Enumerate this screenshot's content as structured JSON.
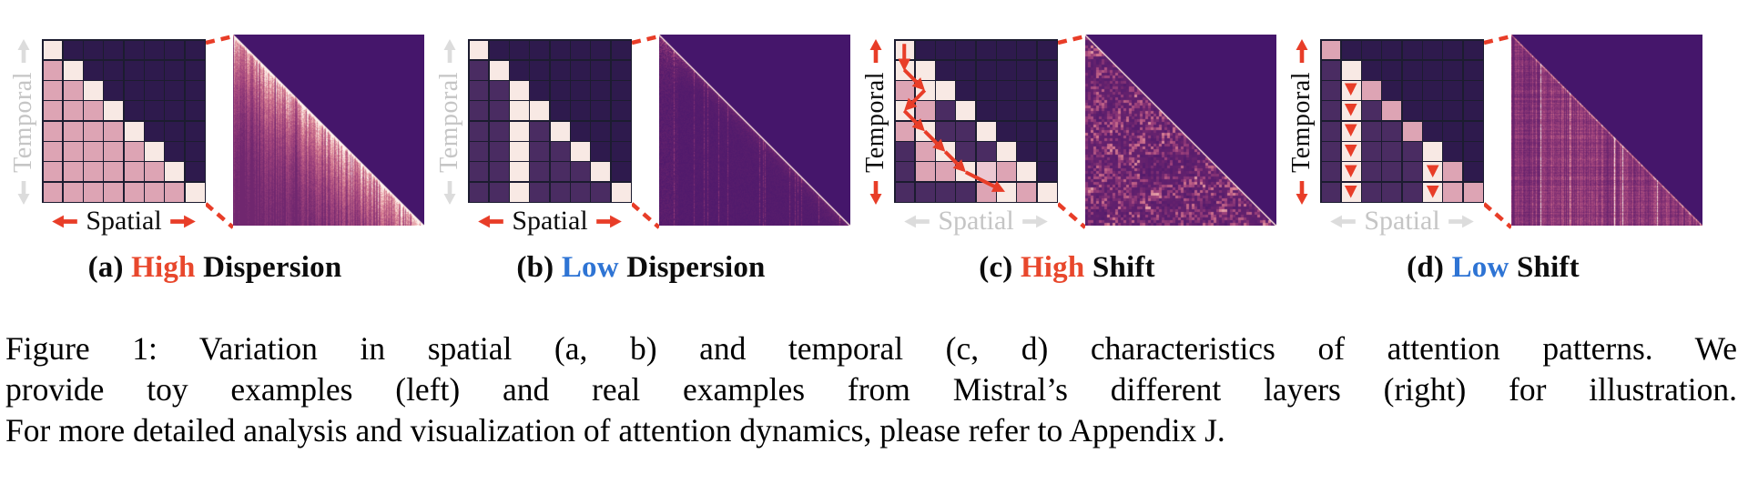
{
  "palette": {
    "accent_red": "#e83d28",
    "accent_blue": "#2e74d4",
    "gray_label": "#c5c5c5",
    "gray_arrow": "#dcdcdc",
    "grid_line": "#1c1c30",
    "heat_background": "#45166b",
    "cell_colors": {
      "d": "#2e1a4d",
      "m": "#4a2c62",
      "p": "#dda4b4",
      "P": "#ecc8d2",
      "c": "#f8e9e4"
    }
  },
  "panels": [
    {
      "id": "a",
      "temporal": {
        "label": "Temporal",
        "style": "gray"
      },
      "spatial": {
        "label": "Spatial",
        "style": "red"
      },
      "grid": [
        "c d d d d d d d",
        "p c d d d d d d",
        "p p c d d d d d",
        "p p p c d d d d",
        "p p p p c d d d",
        "p p p p p c d d",
        "p p p p p p c d",
        "p p p p p p p c"
      ],
      "overlay": {
        "type": "none"
      },
      "heatmap": {
        "style": "high-dispersion",
        "seed": 7
      },
      "caption": {
        "prefix": "(a)",
        "word": "High",
        "word_color": "#e8472c",
        "rest": "Dispersion"
      }
    },
    {
      "id": "b",
      "temporal": {
        "label": "Temporal",
        "style": "gray"
      },
      "spatial": {
        "label": "Spatial",
        "style": "red"
      },
      "grid": [
        "c d d d d d d d",
        "m c d d d d d d",
        "m m c d d d d d",
        "m m c c d d d d",
        "m m c m c d d d",
        "m m c m m c d d",
        "m m c m m m c d",
        "m m c m m m m c"
      ],
      "overlay": {
        "type": "none"
      },
      "heatmap": {
        "style": "low-dispersion",
        "seed": 11
      },
      "caption": {
        "prefix": "(b)",
        "word": "Low",
        "word_color": "#2e74d4",
        "rest": "Dispersion"
      }
    },
    {
      "id": "c",
      "temporal": {
        "label": "Temporal",
        "style": "red"
      },
      "spatial": {
        "label": "Spatial",
        "style": "gray"
      },
      "grid": [
        "c d d d d d d d",
        "c c d d d d d d",
        "p c c d d d d d",
        "c p m c d d d d",
        "p c m m c d d d",
        "m p c m m c d d",
        "m p p c P p c d",
        "m m m m p c p c"
      ],
      "overlay": {
        "type": "path",
        "points": [
          [
            0,
            0
          ],
          [
            0,
            1
          ],
          [
            1,
            2
          ],
          [
            0,
            3
          ],
          [
            1,
            4
          ],
          [
            2,
            5
          ],
          [
            3,
            6
          ],
          [
            5,
            7
          ]
        ]
      },
      "heatmap": {
        "style": "high-shift",
        "seed": 5
      },
      "caption": {
        "prefix": "(c)",
        "word": "High",
        "word_color": "#e8472c",
        "rest": "Shift"
      }
    },
    {
      "id": "d",
      "temporal": {
        "label": "Temporal",
        "style": "red"
      },
      "spatial": {
        "label": "Spatial",
        "style": "gray"
      },
      "grid": [
        "p d d d d d d d",
        "m c d d d d d d",
        "m c p d d d d d",
        "m c m p d d d d",
        "m c m m p d d d",
        "m c m m m c d d",
        "m c m m m c p d",
        "m c m m m c p p"
      ],
      "overlay": {
        "type": "column-arrows",
        "columns": [
          {
            "col": 1,
            "rows": [
              2,
              7
            ]
          },
          {
            "col": 5,
            "rows": [
              6,
              7
            ]
          }
        ]
      },
      "heatmap": {
        "style": "low-shift",
        "seed": 13
      },
      "caption": {
        "prefix": "(d)",
        "word": "Low",
        "word_color": "#2e74d4",
        "rest": "Shift"
      }
    }
  ],
  "figure_caption": {
    "lines": [
      "Figure 1:  Variation in spatial (a, b) and temporal (c, d) characteristics of attention patterns.  We",
      "provide toy examples (left) and real examples from Mistral’s different layers (right) for illustration.",
      "For more detailed analysis and visualization of attention dynamics, please refer to Appendix J."
    ]
  }
}
